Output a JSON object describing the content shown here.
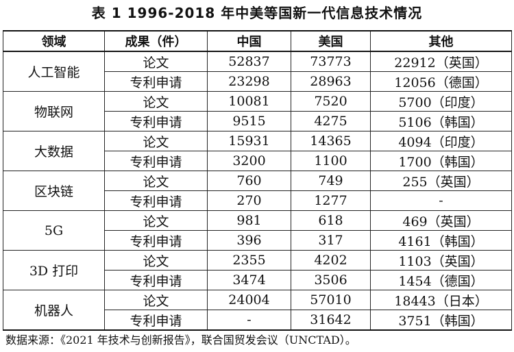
{
  "title": "表 1 1996-2018 年中美等国新一代信息技术情况",
  "headers": [
    "领域",
    "成果（件）",
    "中国",
    "美国",
    "其他"
  ],
  "rows": [
    {
      "domain": "人工智能",
      "items": [
        {
          "type": "论文",
          "china": "52837",
          "usa": "73773",
          "other": "22912（英国）"
        },
        {
          "type": "专利申请",
          "china": "23298",
          "usa": "28963",
          "other": "12056（德国）"
        }
      ]
    },
    {
      "domain": "物联网",
      "items": [
        {
          "type": "论文",
          "china": "10081",
          "usa": "7520",
          "other": "5700（印度）"
        },
        {
          "type": "专利申请",
          "china": "9515",
          "usa": "4275",
          "other": "5106（韩国）"
        }
      ]
    },
    {
      "domain": "大数据",
      "items": [
        {
          "type": "论文",
          "china": "15931",
          "usa": "14365",
          "other": "4094（印度）"
        },
        {
          "type": "专利申请",
          "china": "3200",
          "usa": "1100",
          "other": "1700（韩国）"
        }
      ]
    },
    {
      "domain": "区块链",
      "items": [
        {
          "type": "论文",
          "china": "760",
          "usa": "749",
          "other": "255（英国）"
        },
        {
          "type": "专利申请",
          "china": "270",
          "usa": "1277",
          "other": "-"
        }
      ]
    },
    {
      "domain": "5G",
      "items": [
        {
          "type": "论文",
          "china": "981",
          "usa": "618",
          "other": "469（英国）"
        },
        {
          "type": "专利申请",
          "china": "396",
          "usa": "317",
          "other": "4161（韩国）"
        }
      ]
    },
    {
      "domain": "3D 打印",
      "items": [
        {
          "type": "论文",
          "china": "2355",
          "usa": "4202",
          "other": "1103（英国）"
        },
        {
          "type": "专利申请",
          "china": "3474",
          "usa": "3506",
          "other": "1454（德国）"
        }
      ]
    },
    {
      "domain": "机器人",
      "items": [
        {
          "type": "论文",
          "china": "24004",
          "usa": "57010",
          "other": "18443（日本）"
        },
        {
          "type": "专利申请",
          "china": "-",
          "usa": "31642",
          "other": "3751（韩国）"
        }
      ]
    }
  ],
  "source": "数据来源：《2021 年技术与创新报告》，联合国贸发会议（UNCTAD）。"
}
